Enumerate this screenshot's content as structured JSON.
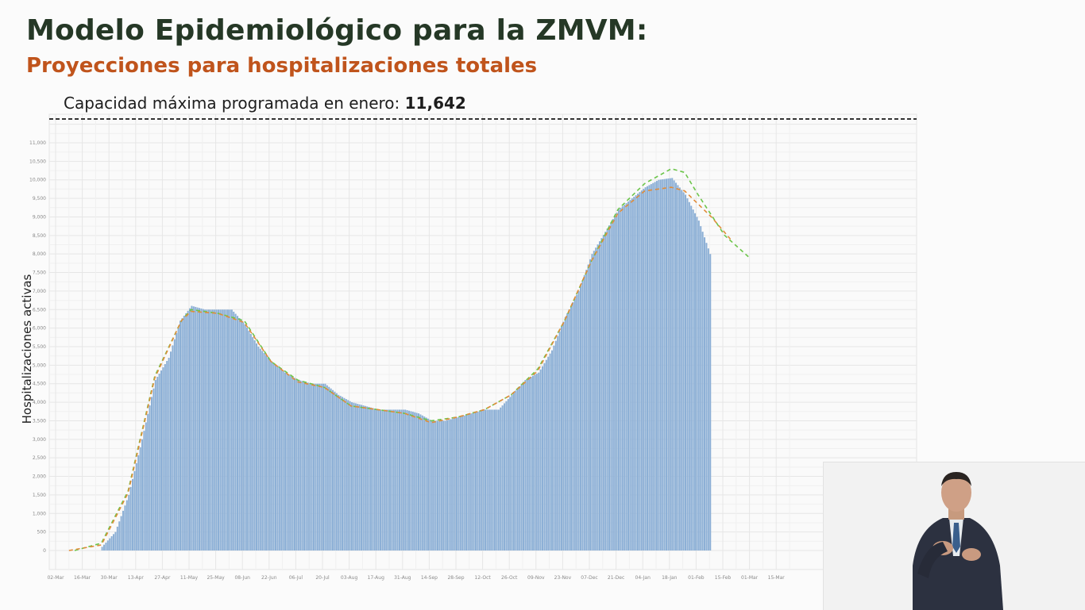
{
  "header": {
    "title": "Modelo Epidemiológico para la ZMVM:",
    "subtitle": "Proyecciones para hospitalizaciones totales"
  },
  "capacity": {
    "label": "Capacidad máxima programada en enero: ",
    "value": "11,642"
  },
  "colors": {
    "title": "#253826",
    "subtitle": "#c0541c",
    "bars": "#8db0d6",
    "projection_green": "#6cc54a",
    "projection_orange": "#e08c3a",
    "capacity_line": "#333333"
  },
  "chart_data": {
    "type": "bar",
    "ylabel": "Hospitalizaciones activas",
    "ylim": [
      0,
      11642
    ],
    "grid": true,
    "capacity_line": 11642,
    "x_tick_labels": [
      "02-Mar",
      "16-Mar",
      "30-Mar",
      "13-Apr",
      "27-Apr",
      "11-May",
      "25-May",
      "08-Jun",
      "22-Jun",
      "06-Jul",
      "20-Jul",
      "03-Aug",
      "17-Aug",
      "31-Aug",
      "14-Sep",
      "28-Sep",
      "12-Oct",
      "26-Oct",
      "09-Nov",
      "23-Nov",
      "07-Dec",
      "21-Dec",
      "04-Jan",
      "18-Jan",
      "01-Feb",
      "15-Feb",
      "01-Mar",
      "15-Mar"
    ],
    "y_tick_labels": [
      "0",
      "500",
      "1,000",
      "1,500",
      "2,000",
      "2,500",
      "3,000",
      "3,500",
      "4,000",
      "4,500",
      "5,000",
      "5,500",
      "6,000",
      "6,500",
      "7,000",
      "7,500",
      "8,000",
      "8,500",
      "9,000",
      "9,500",
      "10,000",
      "10,500",
      "11,000"
    ],
    "bars": {
      "start": "2020-03-26",
      "end": "2021-02-08",
      "keypoints": [
        [
          "2020-03-26",
          100
        ],
        [
          "2020-04-02",
          500
        ],
        [
          "2020-04-09",
          1500
        ],
        [
          "2020-04-16",
          3000
        ],
        [
          "2020-04-23",
          4600
        ],
        [
          "2020-04-30",
          5200
        ],
        [
          "2020-05-06",
          6200
        ],
        [
          "2020-05-12",
          6600
        ],
        [
          "2020-05-19",
          6500
        ],
        [
          "2020-05-26",
          6500
        ],
        [
          "2020-06-02",
          6500
        ],
        [
          "2020-06-09",
          6100
        ],
        [
          "2020-06-16",
          5500
        ],
        [
          "2020-06-23",
          5100
        ],
        [
          "2020-06-30",
          4800
        ],
        [
          "2020-07-07",
          4600
        ],
        [
          "2020-07-14",
          4500
        ],
        [
          "2020-07-21",
          4500
        ],
        [
          "2020-07-28",
          4200
        ],
        [
          "2020-08-04",
          4000
        ],
        [
          "2020-08-11",
          3900
        ],
        [
          "2020-08-18",
          3800
        ],
        [
          "2020-08-25",
          3800
        ],
        [
          "2020-09-01",
          3800
        ],
        [
          "2020-09-08",
          3700
        ],
        [
          "2020-09-15",
          3500
        ],
        [
          "2020-09-22",
          3500
        ],
        [
          "2020-09-29",
          3600
        ],
        [
          "2020-10-06",
          3700
        ],
        [
          "2020-10-13",
          3800
        ],
        [
          "2020-10-20",
          3800
        ],
        [
          "2020-10-27",
          4200
        ],
        [
          "2020-11-03",
          4600
        ],
        [
          "2020-11-10",
          4800
        ],
        [
          "2020-11-17",
          5400
        ],
        [
          "2020-11-24",
          6300
        ],
        [
          "2020-12-01",
          7000
        ],
        [
          "2020-12-08",
          8000
        ],
        [
          "2020-12-15",
          8600
        ],
        [
          "2020-12-22",
          9200
        ],
        [
          "2020-12-29",
          9500
        ],
        [
          "2021-01-05",
          9800
        ],
        [
          "2021-01-12",
          10000
        ],
        [
          "2021-01-19",
          10050
        ],
        [
          "2021-01-26",
          9600
        ],
        [
          "2021-02-02",
          8900
        ],
        [
          "2021-02-08",
          8000
        ]
      ]
    },
    "series": [
      {
        "type": "dashed-line",
        "color": "#6cc54a",
        "points": [
          [
            "2020-03-12",
            0
          ],
          [
            "2020-03-26",
            200
          ],
          [
            "2020-04-09",
            1600
          ],
          [
            "2020-04-23",
            4700
          ],
          [
            "2020-05-07",
            6200
          ],
          [
            "2020-05-12",
            6500
          ],
          [
            "2020-05-26",
            6400
          ],
          [
            "2020-06-09",
            6200
          ],
          [
            "2020-06-23",
            5100
          ],
          [
            "2020-07-07",
            4600
          ],
          [
            "2020-07-21",
            4400
          ],
          [
            "2020-08-04",
            3900
          ],
          [
            "2020-08-18",
            3800
          ],
          [
            "2020-09-01",
            3700
          ],
          [
            "2020-09-15",
            3500
          ],
          [
            "2020-09-29",
            3600
          ],
          [
            "2020-10-13",
            3800
          ],
          [
            "2020-10-27",
            4200
          ],
          [
            "2020-11-10",
            4900
          ],
          [
            "2020-11-24",
            6200
          ],
          [
            "2020-12-08",
            7800
          ],
          [
            "2020-12-22",
            9200
          ],
          [
            "2021-01-05",
            9900
          ],
          [
            "2021-01-19",
            10300
          ],
          [
            "2021-01-26",
            10200
          ],
          [
            "2021-02-02",
            9600
          ],
          [
            "2021-02-16",
            8500
          ],
          [
            "2021-03-01",
            7900
          ]
        ]
      },
      {
        "type": "dashed-line",
        "color": "#e08c3a",
        "points": [
          [
            "2020-03-09",
            0
          ],
          [
            "2020-03-26",
            150
          ],
          [
            "2020-04-09",
            1550
          ],
          [
            "2020-04-23",
            4650
          ],
          [
            "2020-05-07",
            6200
          ],
          [
            "2020-05-12",
            6450
          ],
          [
            "2020-05-26",
            6400
          ],
          [
            "2020-06-09",
            6150
          ],
          [
            "2020-06-23",
            5100
          ],
          [
            "2020-07-07",
            4550
          ],
          [
            "2020-07-21",
            4400
          ],
          [
            "2020-08-04",
            3900
          ],
          [
            "2020-08-18",
            3800
          ],
          [
            "2020-09-01",
            3700
          ],
          [
            "2020-09-15",
            3450
          ],
          [
            "2020-09-29",
            3600
          ],
          [
            "2020-10-13",
            3800
          ],
          [
            "2020-10-27",
            4200
          ],
          [
            "2020-11-10",
            4850
          ],
          [
            "2020-11-24",
            6200
          ],
          [
            "2020-12-08",
            7800
          ],
          [
            "2020-12-22",
            9100
          ],
          [
            "2021-01-05",
            9700
          ],
          [
            "2021-01-19",
            9800
          ],
          [
            "2021-01-26",
            9700
          ],
          [
            "2021-02-09",
            9000
          ],
          [
            "2021-02-19",
            8400
          ]
        ]
      }
    ]
  }
}
